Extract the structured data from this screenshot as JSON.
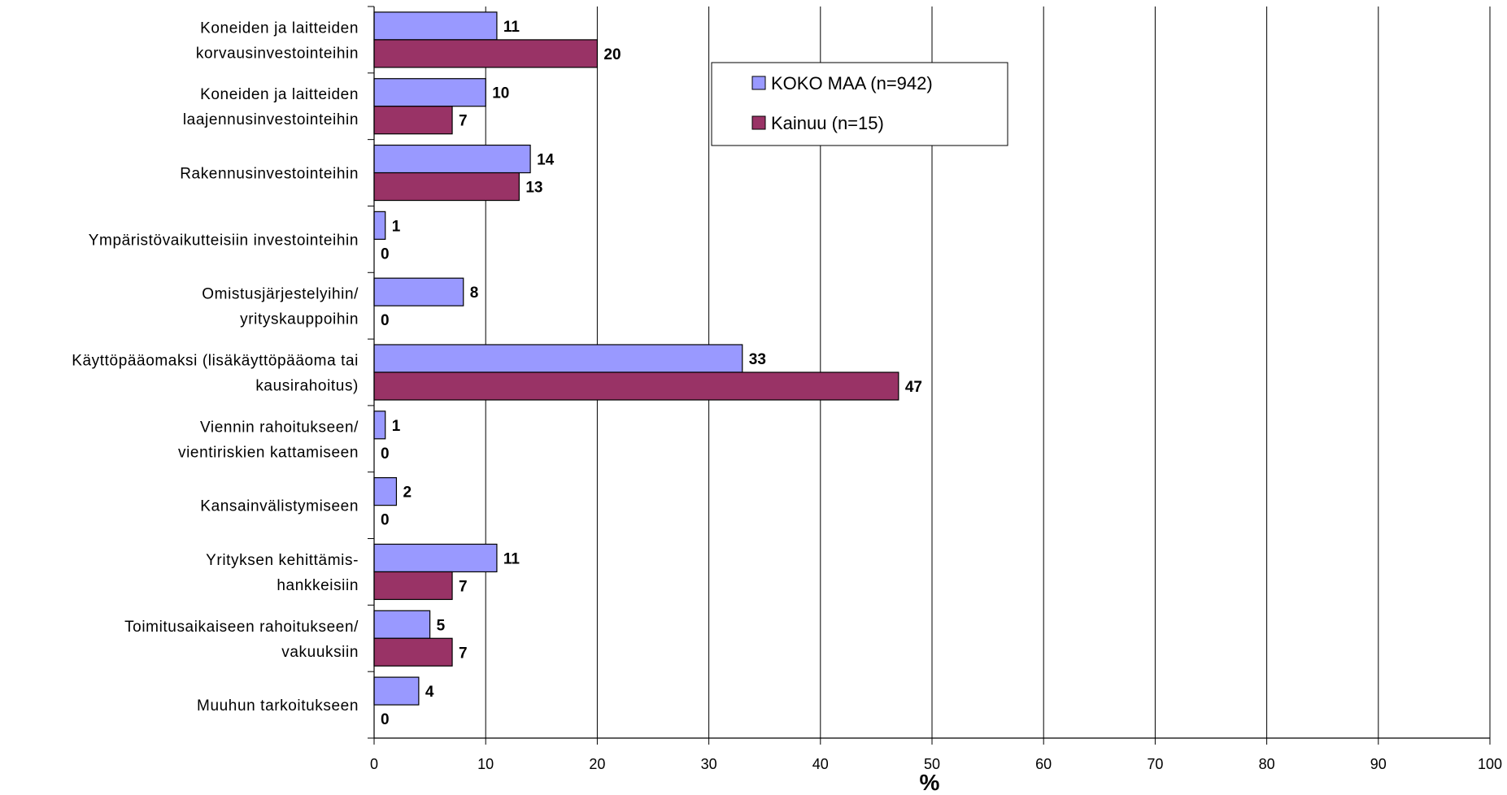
{
  "chart_data": {
    "type": "bar",
    "orientation": "horizontal",
    "categories": [
      [
        "Koneiden ja laitteiden",
        "korvausinvestointeihin"
      ],
      [
        "Koneiden ja laitteiden",
        "laajennusinvestointeihin"
      ],
      [
        "Rakennusinvestointeihin"
      ],
      [
        "Ympäristövaikutteisiin investointeihin"
      ],
      [
        "Omistusjärjestelyihin/",
        "yrityskauppoihin"
      ],
      [
        "Käyttöpääomaksi (lisäkäyttöpääoma tai",
        "kausirahoitus)"
      ],
      [
        "Viennin rahoitukseen/",
        "vientiriskien kattamiseen"
      ],
      [
        "Kansainvälistymiseen"
      ],
      [
        "Yrityksen kehittämis-",
        "hankkeisiin"
      ],
      [
        "Toimitusaikaiseen rahoitukseen/",
        "vakuuksiin"
      ],
      [
        "Muuhun tarkoitukseen"
      ]
    ],
    "series": [
      {
        "name": "KOKO MAA (n=942)",
        "color": "#9999ff",
        "values": [
          11,
          10,
          14,
          1,
          8,
          33,
          1,
          2,
          11,
          5,
          4
        ]
      },
      {
        "name": "Kainuu (n=15)",
        "color": "#993366",
        "values": [
          20,
          7,
          13,
          0,
          0,
          47,
          0,
          0,
          7,
          7,
          0
        ]
      }
    ],
    "xlim": [
      0,
      100
    ],
    "xticks": [
      0,
      10,
      20,
      30,
      40,
      50,
      60,
      70,
      80,
      90,
      100
    ],
    "xlabel": "%",
    "grid": true,
    "legend_position": "top-center"
  }
}
